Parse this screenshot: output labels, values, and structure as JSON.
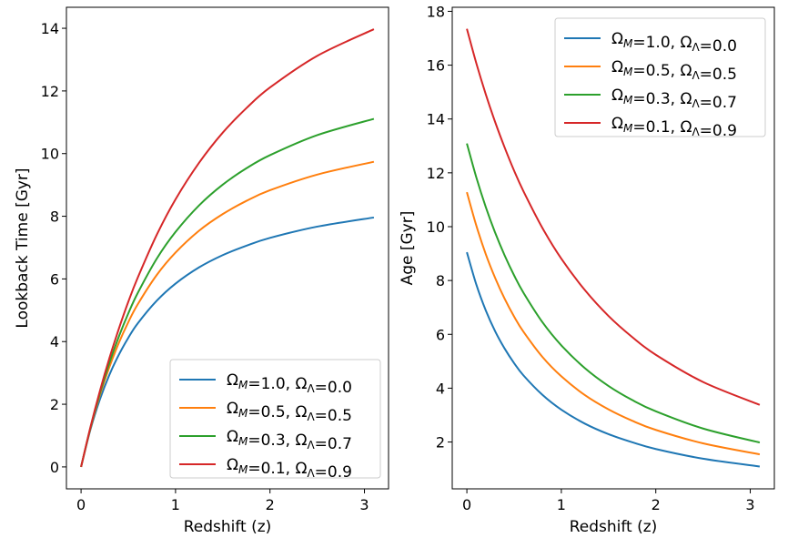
{
  "chart_data": [
    {
      "type": "line",
      "xlabel": "Redshift (z)",
      "ylabel": "Lookback Time [Gyr]",
      "xlim": [
        -0.155,
        3.255
      ],
      "ylim": [
        -0.7,
        14.67
      ],
      "xticks": [
        "0",
        "1",
        "2",
        "3"
      ],
      "yticks": [
        "0",
        "2",
        "4",
        "6",
        "8",
        "10",
        "12",
        "14"
      ],
      "grid": false,
      "legend_position": "lower-right",
      "x": [
        0,
        0.1,
        0.2,
        0.3,
        0.4,
        0.5,
        0.6,
        0.8,
        1.0,
        1.25,
        1.5,
        1.75,
        2.0,
        2.5,
        3.1
      ],
      "series": [
        {
          "name": "Ω_M=1.0, Ω_Λ=0.0",
          "color": "#1f77b4",
          "values": [
            0,
            1.2,
            2.16,
            2.94,
            3.58,
            4.12,
            4.58,
            5.3,
            5.85,
            6.37,
            6.76,
            7.06,
            7.31,
            7.67,
            7.96
          ]
        },
        {
          "name": "Ω_M=0.5, Ω_Λ=0.5",
          "color": "#ff7f0e",
          "values": [
            0,
            1.24,
            2.3,
            3.19,
            3.96,
            4.62,
            5.19,
            6.12,
            6.84,
            7.54,
            8.07,
            8.49,
            8.83,
            9.33,
            9.74
          ]
        },
        {
          "name": "Ω_M=0.3, Ω_Λ=0.7",
          "color": "#2ca02c",
          "values": [
            0,
            1.26,
            2.36,
            3.32,
            4.16,
            4.9,
            5.55,
            6.64,
            7.5,
            8.35,
            9.01,
            9.53,
            9.95,
            10.59,
            11.11
          ]
        },
        {
          "name": "Ω_M=0.1, Ω_Λ=0.9",
          "color": "#d62728",
          "values": [
            0,
            1.28,
            2.43,
            3.47,
            4.41,
            5.27,
            6.04,
            7.4,
            8.54,
            9.71,
            10.67,
            11.45,
            12.11,
            13.12,
            13.97
          ]
        }
      ]
    },
    {
      "type": "line",
      "xlabel": "Redshift (z)",
      "ylabel": "Age [Gyr]",
      "xlim": [
        -0.155,
        3.255
      ],
      "ylim": [
        0.26,
        18.15
      ],
      "xticks": [
        "0",
        "1",
        "2",
        "3"
      ],
      "yticks": [
        "2",
        "4",
        "6",
        "8",
        "10",
        "12",
        "14",
        "16",
        "18"
      ],
      "grid": false,
      "legend_position": "upper-right",
      "x": [
        0,
        0.1,
        0.2,
        0.3,
        0.4,
        0.5,
        0.6,
        0.8,
        1.0,
        1.25,
        1.5,
        1.75,
        2.0,
        2.5,
        3.1
      ],
      "series": [
        {
          "name": "Ω_M=1.0, Ω_Λ=0.0",
          "color": "#1f77b4",
          "values": [
            9.05,
            7.85,
            6.89,
            6.11,
            5.47,
            4.93,
            4.47,
            3.75,
            3.2,
            2.68,
            2.29,
            1.99,
            1.74,
            1.38,
            1.09
          ]
        },
        {
          "name": "Ω_M=0.5, Ω_Λ=0.5",
          "color": "#ff7f0e",
          "values": [
            11.28,
            10.04,
            8.98,
            8.09,
            7.32,
            6.66,
            6.09,
            5.16,
            4.44,
            3.74,
            3.21,
            2.79,
            2.45,
            1.95,
            1.54
          ]
        },
        {
          "name": "Ω_M=0.3, Ω_Λ=0.7",
          "color": "#2ca02c",
          "values": [
            13.09,
            11.83,
            10.73,
            9.77,
            8.93,
            8.19,
            7.54,
            6.45,
            5.59,
            4.74,
            4.08,
            3.56,
            3.14,
            2.5,
            1.98
          ]
        },
        {
          "name": "Ω_M=0.1, Ω_Λ=0.9",
          "color": "#d62728",
          "values": [
            17.35,
            16.07,
            14.92,
            13.88,
            12.94,
            12.08,
            11.31,
            9.95,
            8.81,
            7.64,
            6.68,
            5.9,
            5.24,
            4.23,
            3.38
          ]
        }
      ]
    }
  ]
}
